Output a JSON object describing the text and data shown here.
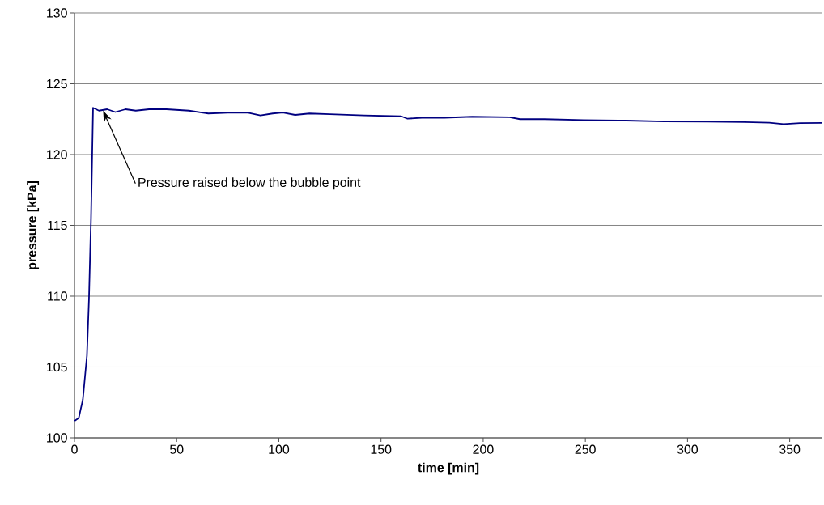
{
  "chart_data": {
    "type": "line",
    "xlabel": "time [min]",
    "ylabel": "pressure [kPa]",
    "xlim": [
      0,
      366
    ],
    "ylim": [
      100,
      130
    ],
    "xticks": [
      0,
      50,
      100,
      150,
      200,
      250,
      300,
      350
    ],
    "yticks": [
      100,
      105,
      110,
      115,
      120,
      125,
      130
    ],
    "grid": "y",
    "marker": "none",
    "line_style": "solid",
    "annotations": [
      {
        "text": "Pressure raised below the bubble point",
        "x": 14,
        "y": 123.1
      }
    ],
    "series": [
      {
        "color": "#000080",
        "x": [
          0.1,
          2.1,
          4.1,
          6.1,
          7.1,
          8.1,
          8.7,
          9.1,
          12,
          16,
          20,
          25,
          30,
          36.5,
          45,
          56,
          65.5,
          75,
          85,
          91,
          97,
          102,
          108,
          115,
          125,
          141.7,
          160,
          163,
          170,
          181,
          194.6,
          213,
          218,
          230,
          249,
          270,
          288.5,
          310,
          328,
          340,
          347,
          355,
          366
        ],
        "values": [
          101.2,
          101.4,
          102.7,
          105.8,
          109.8,
          115.5,
          120.2,
          123.3,
          123.1,
          123.2,
          123.0,
          123.2,
          123.1,
          123.2,
          123.2,
          123.1,
          122.9,
          122.95,
          122.95,
          122.76,
          122.9,
          122.96,
          122.8,
          122.9,
          122.85,
          122.76,
          122.7,
          122.53,
          122.6,
          122.6,
          122.67,
          122.63,
          122.5,
          122.5,
          122.44,
          122.4,
          122.34,
          122.32,
          122.29,
          122.25,
          122.15,
          122.22,
          122.24
        ]
      }
    ]
  }
}
